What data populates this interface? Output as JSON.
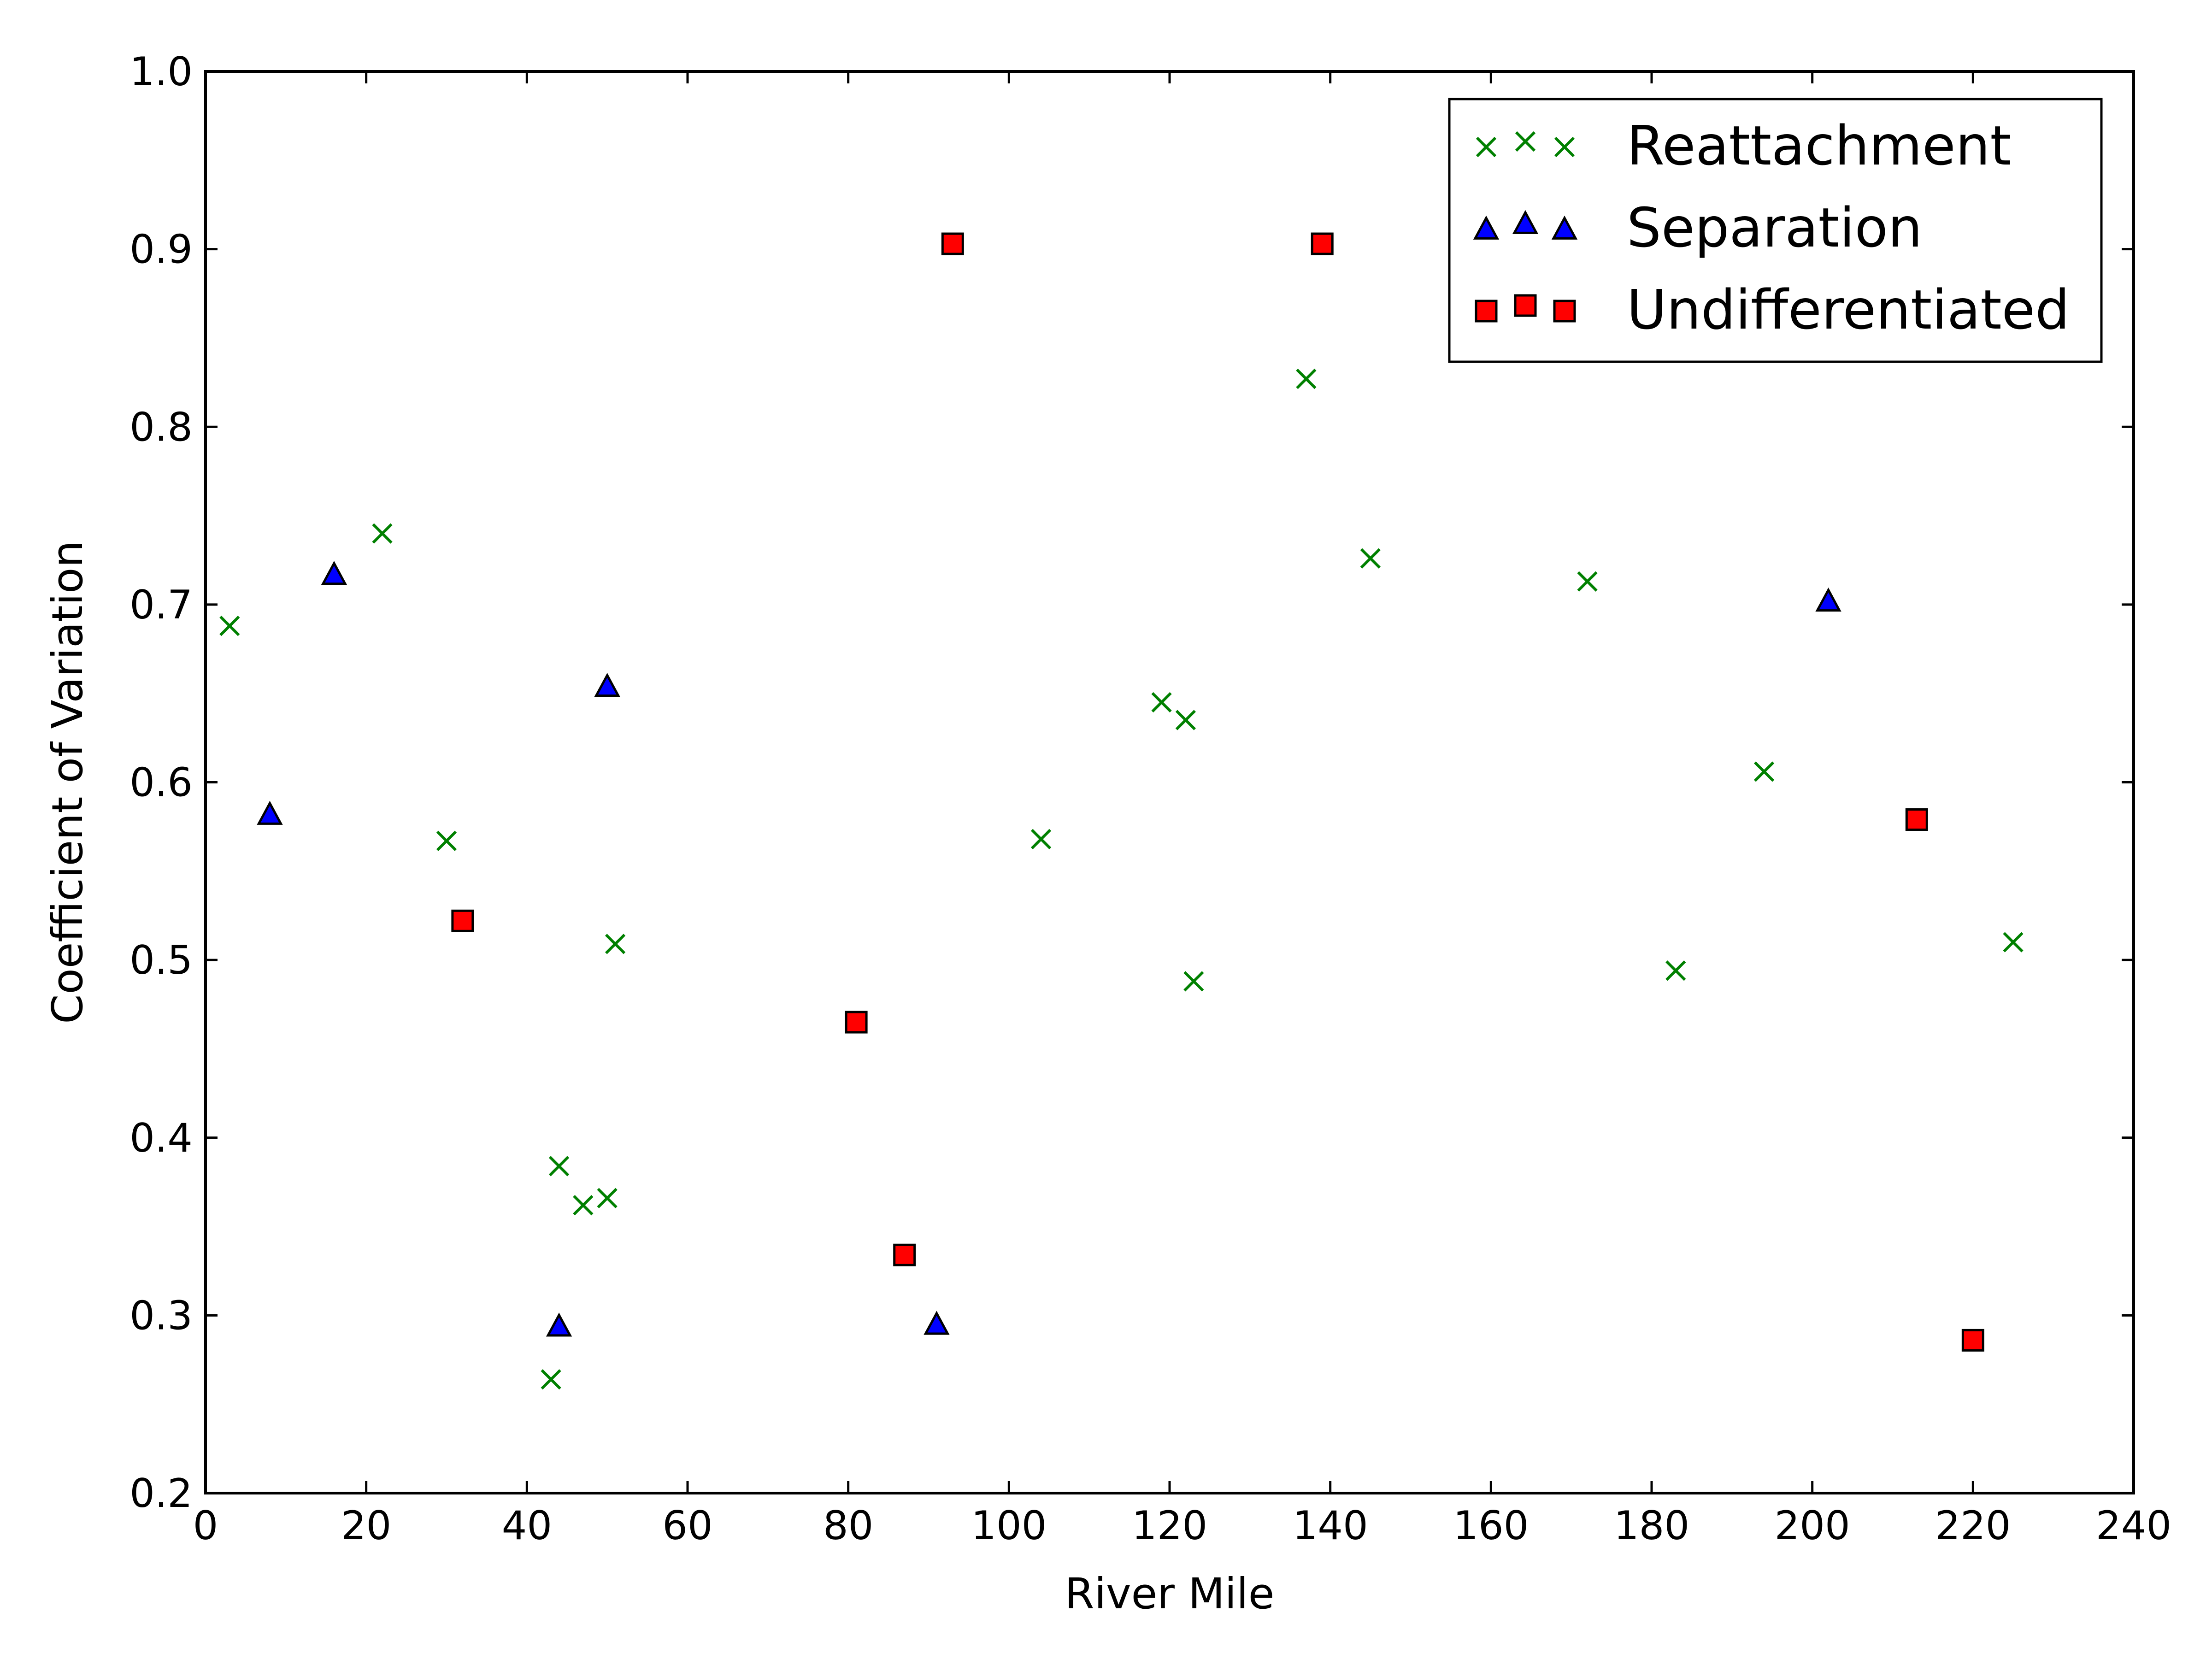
{
  "chart_data": {
    "type": "scatter",
    "title": "",
    "xlabel": "River Mile",
    "ylabel": "Coefficient of Variation",
    "xlim": [
      0,
      240
    ],
    "ylim": [
      0.2,
      1.0
    ],
    "xticks": [
      "0",
      "20",
      "40",
      "60",
      "80",
      "100",
      "120",
      "140",
      "160",
      "180",
      "200",
      "220",
      "240"
    ],
    "yticks": [
      "0.2",
      "0.3",
      "0.4",
      "0.5",
      "0.6",
      "0.7",
      "0.8",
      "0.9",
      "1.0"
    ],
    "grid": false,
    "legend_position": "top-right",
    "series": [
      {
        "name": "Reattachment",
        "marker": "x",
        "color": "#008000",
        "points": [
          [
            3,
            0.688
          ],
          [
            22,
            0.74
          ],
          [
            30,
            0.567
          ],
          [
            43,
            0.264
          ],
          [
            44,
            0.384
          ],
          [
            47,
            0.362
          ],
          [
            50,
            0.366
          ],
          [
            51,
            0.509
          ],
          [
            104,
            0.568
          ],
          [
            119,
            0.645
          ],
          [
            122,
            0.635
          ],
          [
            123,
            0.488
          ],
          [
            137,
            0.827
          ],
          [
            145,
            0.726
          ],
          [
            172,
            0.713
          ],
          [
            183,
            0.494
          ],
          [
            194,
            0.606
          ],
          [
            225,
            0.51
          ]
        ]
      },
      {
        "name": "Separation",
        "marker": "triangle",
        "color": "#0000ff",
        "points": [
          [
            8,
            0.582
          ],
          [
            16,
            0.717
          ],
          [
            44,
            0.294
          ],
          [
            50,
            0.654
          ],
          [
            91,
            0.295
          ],
          [
            202,
            0.702
          ]
        ]
      },
      {
        "name": "Undifferentiated",
        "marker": "square",
        "color": "#ff0000",
        "points": [
          [
            32,
            0.522
          ],
          [
            81,
            0.465
          ],
          [
            87,
            0.334
          ],
          [
            93,
            0.903
          ],
          [
            139,
            0.903
          ],
          [
            213,
            0.579
          ],
          [
            220,
            0.286
          ]
        ]
      }
    ]
  }
}
